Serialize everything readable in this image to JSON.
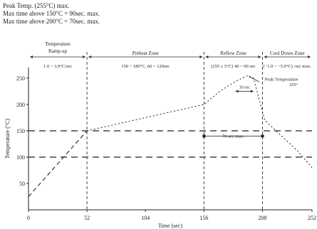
{
  "header_lines": [
    "Peak Temp. (255°C) max.",
    "Max time above 150°C = 90sec. max.",
    "Max time above 200°C = 70sec. max."
  ],
  "zones": [
    {
      "name": "Temperature Ramp-up",
      "spec": "1.0 ~ 3.0°C/sec"
    },
    {
      "name": "Preheat Zone",
      "spec": "150 ~ 180°C, 60 ~ 120sec"
    },
    {
      "name": "Reflow Zone",
      "spec": "(255 ± 5°C) 40 ~ 60 sec"
    },
    {
      "name": "Cool Down Zone",
      "spec": "(−1.0 ~ −5.0°C) /sec max."
    }
  ],
  "annotations": {
    "peak": "Peak Temperature",
    "peak_window": "10 sec",
    "time_above": "70 sec max."
  },
  "chart_data": {
    "type": "line",
    "xlabel": "Time (sec)",
    "ylabel": "Temperature (°C)",
    "xlim": [
      0,
      252
    ],
    "ylim": [
      0,
      270
    ],
    "x_ticks": [
      0,
      52,
      104,
      156,
      208,
      252
    ],
    "y_ticks": [
      50,
      100,
      150,
      200,
      250
    ],
    "y_tick_labels": [
      "50",
      "100",
      "150",
      "200",
      "250"
    ],
    "reference_lines_y": [
      100,
      150
    ],
    "zone_boundaries_x": [
      52,
      156,
      208
    ],
    "series": [
      {
        "values_x": [
          0,
          52
        ],
        "values_y": [
          25,
          150
        ]
      },
      {
        "values_x": [
          52,
          156,
          170,
          185,
          195,
          200,
          210,
          225,
          240,
          252
        ],
        "values_y": [
          150,
          200,
          225,
          245,
          255,
          250,
          170,
          140,
          110,
          80
        ]
      }
    ]
  }
}
